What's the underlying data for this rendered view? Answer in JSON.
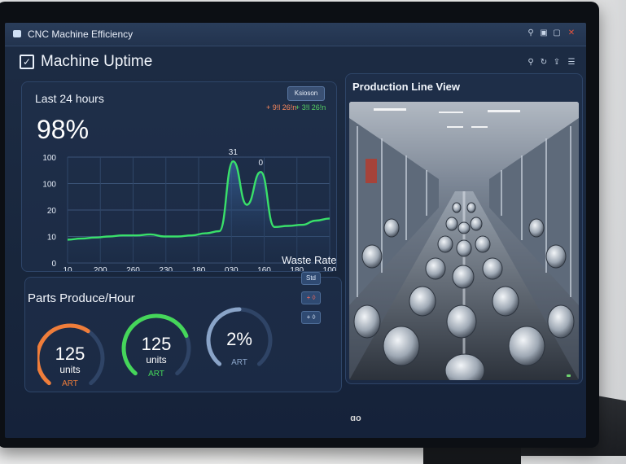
{
  "window": {
    "title": "CNC Machine Efficiency"
  },
  "header": {
    "title": "Machine Uptime"
  },
  "uptime": {
    "period_label": "Last 24 hours",
    "value": "98%",
    "legend_button": "Ksioson",
    "legend_items": [
      "+ 9!l 26!n",
      "+ 3!l 26!n"
    ],
    "peak_labels": [
      "31",
      "0"
    ]
  },
  "chart_data": {
    "type": "area",
    "x_ticks": [
      "10",
      "200",
      "260",
      "230",
      "180",
      "030",
      "160",
      "180",
      "100"
    ],
    "y_ticks": [
      "100",
      "100",
      "20",
      "10",
      "0"
    ],
    "values": [
      22,
      23,
      24,
      25,
      26,
      26,
      27,
      25,
      25,
      26,
      28,
      30,
      96,
      55,
      86,
      34,
      35,
      36,
      40,
      42
    ],
    "grid": true,
    "line_color": "#39e06a"
  },
  "production": {
    "title": "Production Line View"
  },
  "parts": {
    "title": "Parts Produce/Hour",
    "gauges": [
      {
        "value": "125",
        "unit": "units",
        "tag": "ART",
        "color": "#ef7d3a",
        "level": 0.62
      },
      {
        "value": "125",
        "unit": "units",
        "tag": "ART",
        "color": "#45d65a",
        "level": 0.74
      },
      {
        "value": "2%",
        "unit": "",
        "tag": "ART",
        "color": "#8aa4c8",
        "level": 0.02
      }
    ]
  },
  "waste": {
    "title": "Waste Rate",
    "buttons": [
      "Std",
      "+ ◊",
      "+ ◊"
    ]
  },
  "colors": {
    "accent_orange": "#ef7d3a",
    "accent_green": "#45d65a",
    "screen_bg": "#1a2940"
  }
}
